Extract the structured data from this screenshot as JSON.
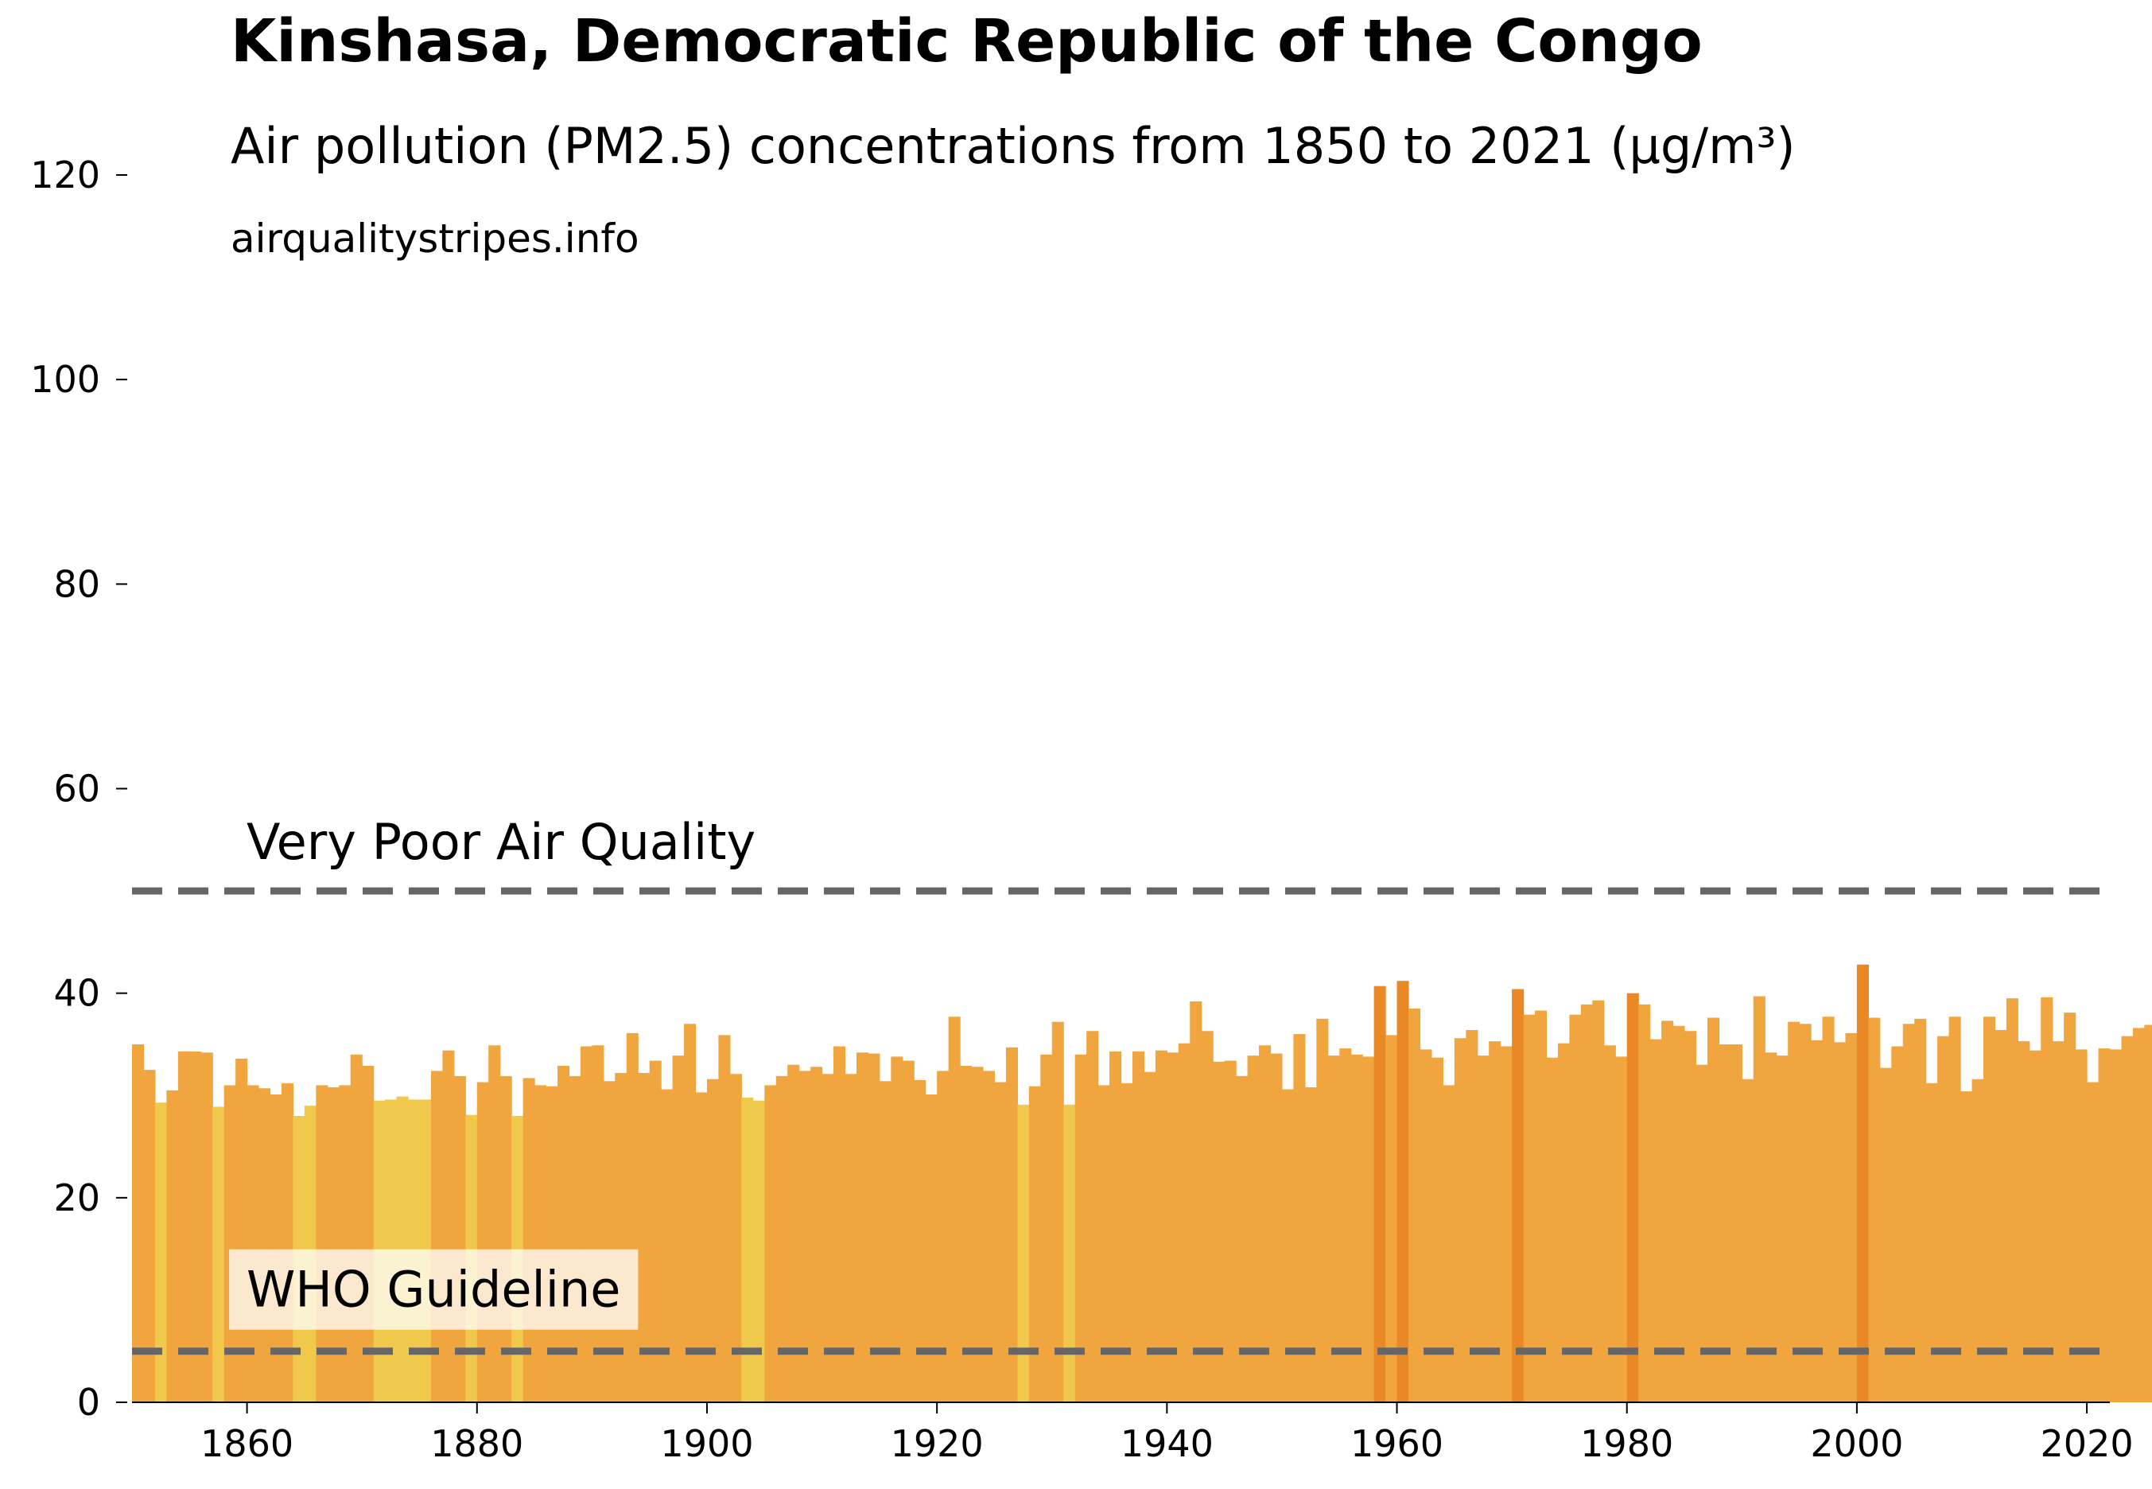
{
  "chart_data": {
    "type": "bar",
    "title": "Kinshasa, Democratic Republic of the Congo",
    "subtitle": "Air pollution (PM2.5) concentrations from 1850 to 2021 (µg/m³)",
    "source": "airqualitystripes.info",
    "x_start": 1850,
    "x_end": 2021,
    "xlim": [
      1850,
      2022
    ],
    "ylim": [
      0,
      120
    ],
    "x_ticks": [
      1860,
      1880,
      1900,
      1920,
      1940,
      1960,
      1980,
      2000,
      2020
    ],
    "y_ticks": [
      0,
      20,
      40,
      60,
      80,
      100,
      120
    ],
    "grid": false,
    "values": [
      35.0,
      32.5,
      29.3,
      30.5,
      34.3,
      34.3,
      34.2,
      28.9,
      31.0,
      33.6,
      31.0,
      30.7,
      30.1,
      31.2,
      28.0,
      29.0,
      31.0,
      30.8,
      31.0,
      34.0,
      32.9,
      29.5,
      29.6,
      29.9,
      29.6,
      29.6,
      32.4,
      34.4,
      31.9,
      28.1,
      31.3,
      34.9,
      31.9,
      28.0,
      31.7,
      31.0,
      30.9,
      32.9,
      31.9,
      34.8,
      34.9,
      31.4,
      32.2,
      36.1,
      32.2,
      33.4,
      30.6,
      33.9,
      37.0,
      30.3,
      31.6,
      35.9,
      32.1,
      29.8,
      29.5,
      31.0,
      31.9,
      33.0,
      32.4,
      32.8,
      32.1,
      34.8,
      32.1,
      34.2,
      34.1,
      31.4,
      33.8,
      33.4,
      31.5,
      30.1,
      32.4,
      37.7,
      32.9,
      32.8,
      32.4,
      31.3,
      34.7,
      29.1,
      30.9,
      34.0,
      37.2,
      29.1,
      34.0,
      36.3,
      31.0,
      34.3,
      31.2,
      34.3,
      32.3,
      34.4,
      34.2,
      35.1,
      39.2,
      36.3,
      33.3,
      33.4,
      31.9,
      33.9,
      34.9,
      34.1,
      30.6,
      36.0,
      30.8,
      37.5,
      33.9,
      34.6,
      34.0,
      33.8,
      40.7,
      35.9,
      41.2,
      38.5,
      34.5,
      33.7,
      31.0,
      35.6,
      36.4,
      33.9,
      35.3,
      34.8,
      40.4,
      37.9,
      38.3,
      33.7,
      35.1,
      37.9,
      38.9,
      39.3,
      34.9,
      33.8,
      40.0,
      38.9,
      35.5,
      37.3,
      36.8,
      36.3,
      33.0,
      37.6,
      35.0,
      35.0,
      31.6,
      39.7,
      34.2,
      33.9,
      37.2,
      37.0,
      35.4,
      37.7,
      35.2,
      36.1,
      42.8,
      37.6,
      32.7,
      34.8,
      37.0,
      37.5,
      31.2,
      35.8,
      37.7,
      30.4,
      31.6,
      37.7,
      36.4,
      39.5,
      35.3,
      34.4,
      39.6,
      35.3,
      38.1,
      34.5,
      31.3,
      34.6,
      34.5,
      35.8,
      36.6,
      36.9
    ],
    "color_scale": {
      "below_30": "#f0c94c",
      "from_30_to_40": "#f0a53e",
      "above_40": "#ea8825"
    },
    "reference_lines": [
      {
        "label": "Very Poor Air Quality",
        "value": 50,
        "color": "#666666"
      },
      {
        "label": "WHO Guideline",
        "value": 5,
        "color": "#666666"
      }
    ]
  }
}
